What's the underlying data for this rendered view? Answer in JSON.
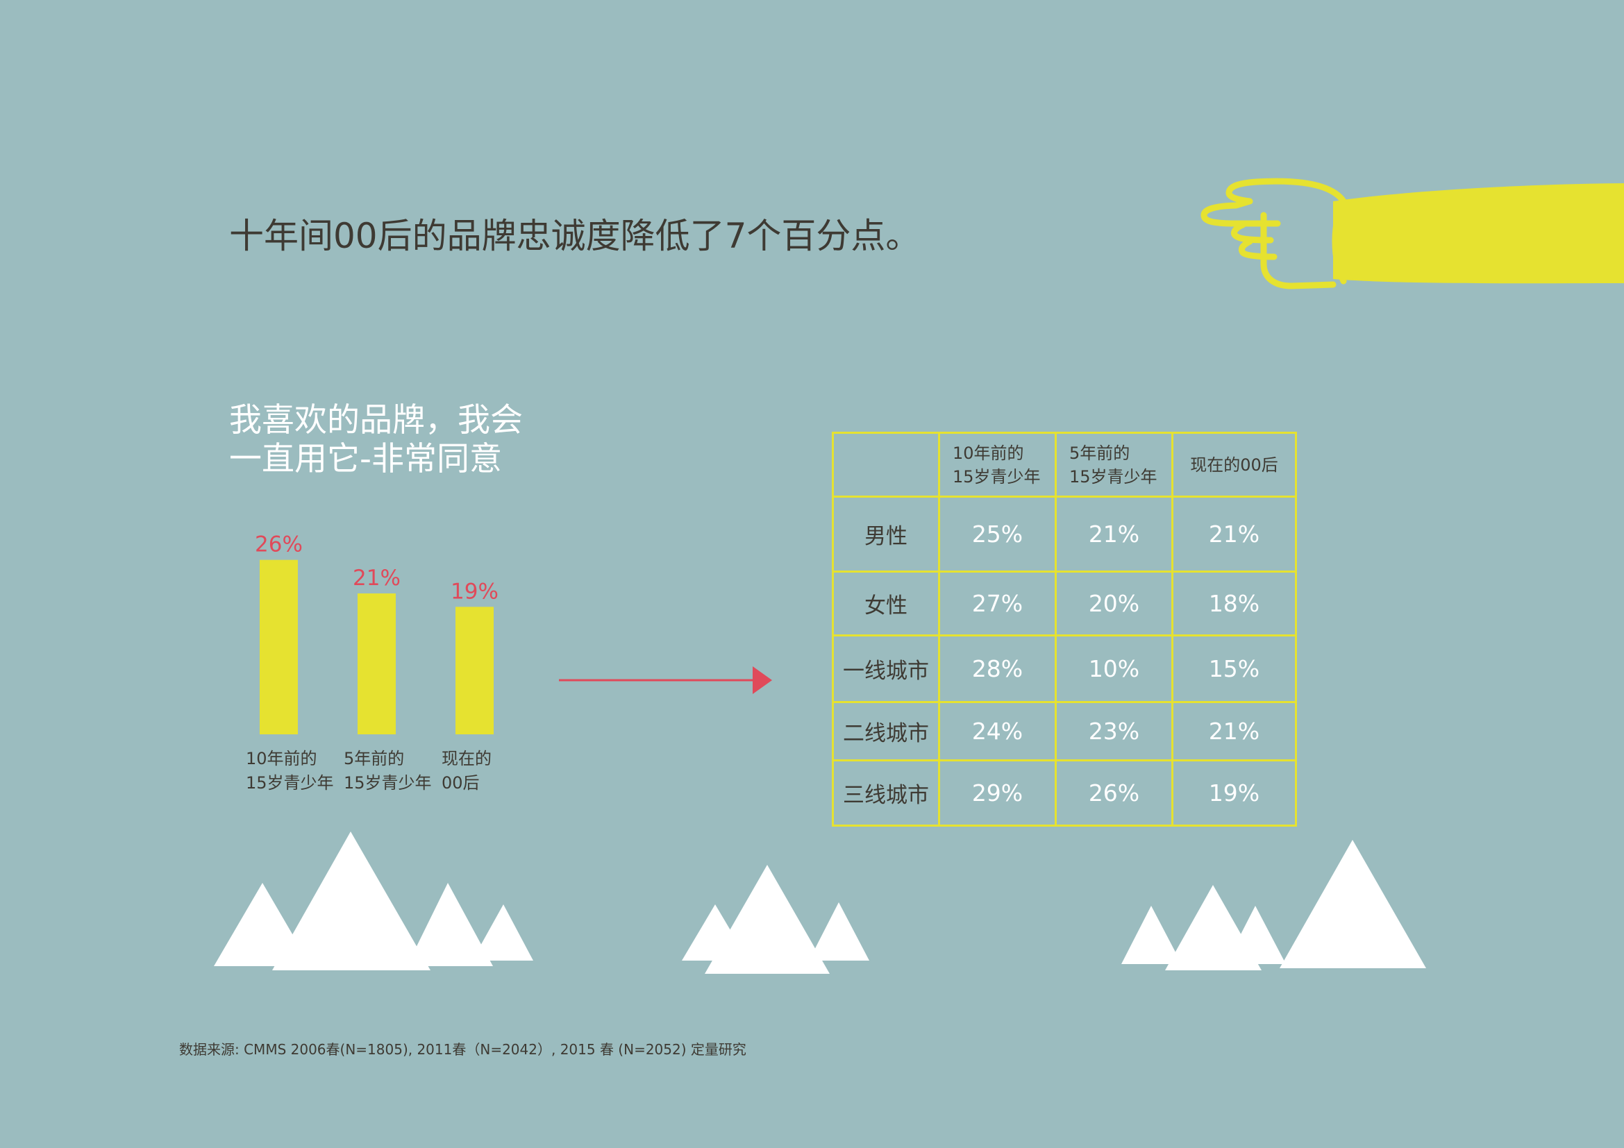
{
  "headline": "十年间00后的品牌忠诚度降低了7个百分点。",
  "subtitle": {
    "line1": "我喜欢的品牌，我会",
    "line2": "一直用它-非常同意"
  },
  "colors": {
    "background": "#9bbcbf",
    "accent_yellow": "#e6e230",
    "accent_red": "#e04a5a",
    "text_dark": "#3e3a33",
    "white": "#ffffff"
  },
  "chart_data": [
    {
      "type": "bar",
      "title": "我喜欢的品牌，我会一直用它-非常同意",
      "categories": [
        [
          "10年前的",
          "15岁青少年"
        ],
        [
          "5年前的",
          "15岁青少年"
        ],
        [
          "现在的",
          "00后"
        ]
      ],
      "values": [
        26,
        21,
        19
      ],
      "data_labels": [
        "26%",
        "21%",
        "19%"
      ],
      "ylim": [
        0,
        30
      ],
      "grid": false
    },
    {
      "type": "table",
      "columns": [
        [
          "",
          ""
        ],
        [
          "10年前的",
          "15岁青少年"
        ],
        [
          "5年前的",
          "15岁青少年"
        ],
        [
          "现在的00后",
          ""
        ]
      ],
      "rows": [
        {
          "label": "男性",
          "values": [
            "25%",
            "21%",
            "21%"
          ]
        },
        {
          "label": "女性",
          "values": [
            "27%",
            "20%",
            "18%"
          ]
        },
        {
          "label": "一线城市",
          "values": [
            "28%",
            "10%",
            "15%"
          ]
        },
        {
          "label": "二线城市",
          "values": [
            "24%",
            "23%",
            "21%"
          ]
        },
        {
          "label": "三线城市",
          "values": [
            "29%",
            "26%",
            "19%"
          ]
        }
      ]
    }
  ],
  "icons": [
    "pointing-hand-icon",
    "right-arrow-icon",
    "mountains-icon"
  ],
  "source": "数据来源:   CMMS 2006春(N=1805),  2011春（N=2042）,   2015 春 (N=2052)  定量研究"
}
